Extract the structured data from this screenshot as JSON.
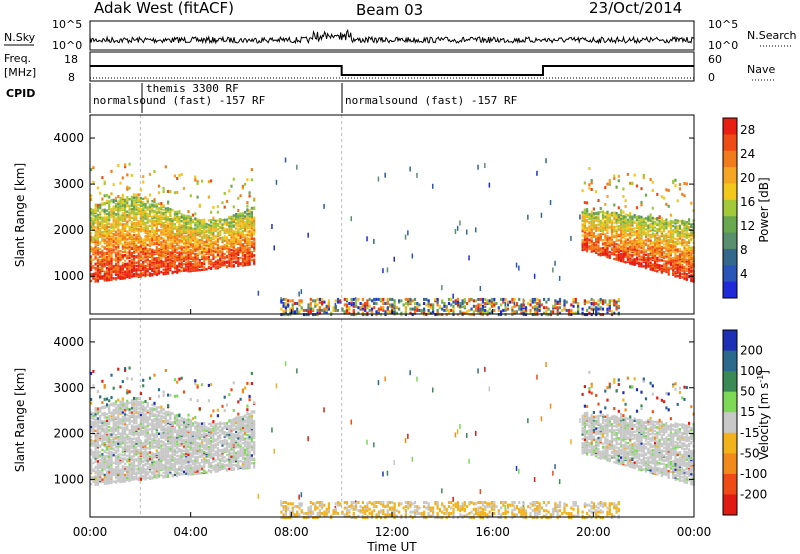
{
  "header": {
    "station": "Adak West (fitACF)",
    "beam": "Beam 03",
    "date": "23/Oct/2014"
  },
  "panels": {
    "nsky": {
      "left_label": "N.Sky",
      "right_label": "N.Search",
      "left_ticks": [
        "10^5",
        "10^0"
      ],
      "right_ticks": [
        "10^5",
        "10^0"
      ]
    },
    "freq": {
      "left_label_1": "Freq.",
      "left_label_2": "[MHz]",
      "left_ticks": [
        "18",
        "8"
      ],
      "right_label": "Nave",
      "right_ticks": [
        "60",
        "0"
      ]
    },
    "cpid": {
      "label": "CPID",
      "segments": [
        {
          "label": "normalsound (fast) -157 RF",
          "start_h": 0
        },
        {
          "label": "themis 3300 RF",
          "start_h": 2.0
        },
        {
          "label": "normalsound (fast) -157 RF",
          "start_h": 10.0
        }
      ]
    }
  },
  "chart_data": [
    {
      "type": "heatmap",
      "name": "Power",
      "ylabel": "Slant Range [km]",
      "xlabel": "Time UT",
      "xlim_hours": [
        0,
        24
      ],
      "x_ticks": [
        "00:00",
        "04:00",
        "08:00",
        "12:00",
        "16:00",
        "20:00",
        "00:00"
      ],
      "ylim_km": [
        180,
        4500
      ],
      "y_ticks": [
        1000,
        2000,
        3000,
        4000
      ],
      "colorbar": {
        "label": "Power [dB]",
        "range": [
          0,
          30
        ],
        "ticks": [
          "4",
          "8",
          "12",
          "16",
          "20",
          "24",
          "28"
        ],
        "colors": [
          "#1f2bd8",
          "#2a55b8",
          "#33688c",
          "#5a8f6e",
          "#6aa84f",
          "#a3c93a",
          "#f2c81d",
          "#f5a623",
          "#f27c1b",
          "#ef4b16",
          "#e81e12"
        ]
      },
      "features": [
        {
          "desc": "strong echoes near-range band",
          "t_start": 0.0,
          "t_end": 6.3,
          "r_min": 900,
          "r_max": 2600
        },
        {
          "desc": "strong echoes evening",
          "t_start": 19.5,
          "t_end": 24.0,
          "r_min": 900,
          "r_max": 2700
        },
        {
          "desc": "low-range sparse echoes",
          "t_start": 8.0,
          "t_end": 20.0,
          "r_min": 180,
          "r_max": 600
        }
      ]
    },
    {
      "type": "heatmap",
      "name": "Velocity",
      "ylabel": "Slant Range [km]",
      "xlabel": "Time UT",
      "xlim_hours": [
        0,
        24
      ],
      "x_ticks": [
        "00:00",
        "04:00",
        "08:00",
        "12:00",
        "16:00",
        "20:00",
        "00:00"
      ],
      "ylim_km": [
        180,
        4500
      ],
      "y_ticks": [
        1000,
        2000,
        3000,
        4000
      ],
      "colorbar": {
        "label": "Velocity [m s^-1]",
        "ticks": [
          "200",
          "100",
          "50",
          "15",
          "-15",
          "-50",
          "-100",
          "-200"
        ],
        "colors": [
          "#1c2fb5",
          "#2b6a8c",
          "#3b8a55",
          "#7ed957",
          "#c8c8c8",
          "#f2b21b",
          "#f28a1b",
          "#ef4b16",
          "#e21b12"
        ]
      }
    }
  ],
  "axes": {
    "xlabel": "Time UT",
    "ylabel": "Slant Range [km]",
    "power_label": "Power [dB]",
    "velocity_label_main": "Velocity [m s",
    "velocity_label_sup": "-1",
    "velocity_label_end": "]"
  }
}
